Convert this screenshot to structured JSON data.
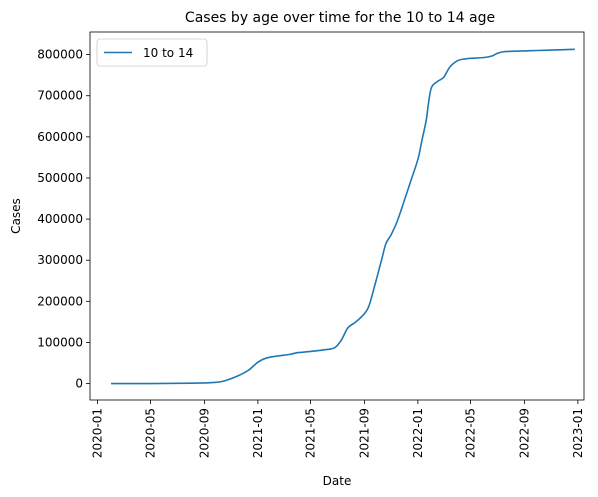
{
  "chart_data": {
    "type": "line",
    "title": "Cases by age over time for the 10 to 14 age",
    "xlabel": "Date",
    "ylabel": "Cases",
    "xlim": [
      "2019-12-15",
      "2023-01-15"
    ],
    "ylim": [
      -40000,
      855000
    ],
    "grid": false,
    "legend": "top-left",
    "x_ticks": [
      "2020-01",
      "2020-05",
      "2020-09",
      "2021-01",
      "2021-05",
      "2021-09",
      "2022-01",
      "2022-05",
      "2022-09",
      "2023-01"
    ],
    "y_ticks": [
      0,
      100000,
      200000,
      300000,
      400000,
      500000,
      600000,
      700000,
      800000
    ],
    "y_tick_labels": [
      "0",
      "100000",
      "200000",
      "300000",
      "400000",
      "500000",
      "600000",
      "700000",
      "800000"
    ],
    "series": [
      {
        "name": "10 to 14",
        "color": "#1f77b4",
        "x": [
          "2020-02-01",
          "2020-05-01",
          "2020-08-01",
          "2020-09-15",
          "2020-10-15",
          "2020-11-15",
          "2020-12-10",
          "2021-01-01",
          "2021-01-20",
          "2021-02-15",
          "2021-03-15",
          "2021-04-01",
          "2021-05-01",
          "2021-06-01",
          "2021-06-25",
          "2021-07-10",
          "2021-07-25",
          "2021-08-10",
          "2021-08-25",
          "2021-09-10",
          "2021-09-25",
          "2021-10-10",
          "2021-10-20",
          "2021-11-01",
          "2021-11-15",
          "2021-12-01",
          "2021-12-15",
          "2022-01-01",
          "2022-01-10",
          "2022-01-20",
          "2022-01-25",
          "2022-02-01",
          "2022-02-15",
          "2022-03-01",
          "2022-03-15",
          "2022-04-01",
          "2022-04-15",
          "2022-05-01",
          "2022-06-01",
          "2022-06-20",
          "2022-07-01",
          "2022-07-15",
          "2022-08-01",
          "2022-09-01",
          "2022-10-01",
          "2022-11-01",
          "2022-12-01",
          "2022-12-25"
        ],
        "values": [
          0,
          0,
          1000,
          2000,
          6000,
          18000,
          32000,
          52000,
          62000,
          67000,
          71000,
          75000,
          78000,
          82000,
          87000,
          105000,
          135000,
          148000,
          162000,
          185000,
          240000,
          300000,
          340000,
          362000,
          395000,
          445000,
          490000,
          545000,
          590000,
          640000,
          680000,
          720000,
          735000,
          745000,
          770000,
          785000,
          789000,
          791000,
          793000,
          797000,
          803000,
          807000,
          808000,
          809000,
          810000,
          811000,
          812000,
          813000
        ]
      }
    ]
  }
}
